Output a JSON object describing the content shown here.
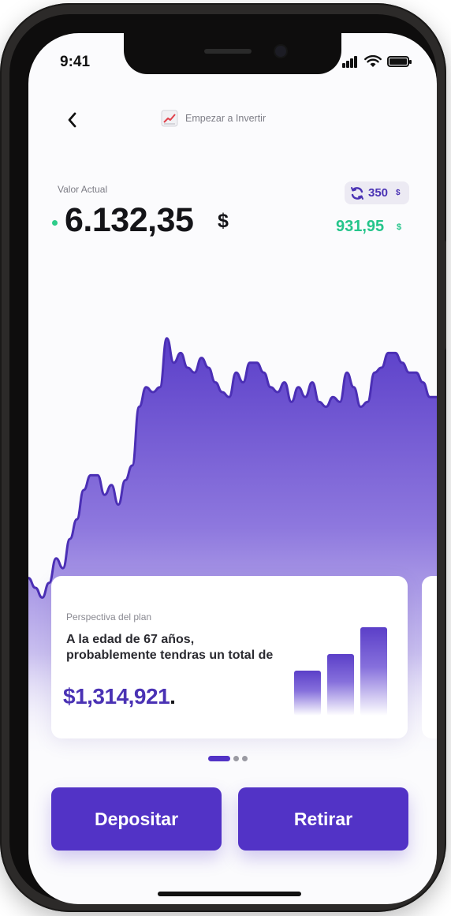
{
  "status_bar": {
    "time": "9:41"
  },
  "header": {
    "title": "Empezar a Invertir"
  },
  "balance": {
    "label": "Valor Actual",
    "amount": "6.132,35",
    "currency": "$",
    "points_value": "350",
    "points_currency": "$",
    "gain": "931,95",
    "gain_currency": "$"
  },
  "chart_data": {
    "type": "area",
    "x": [
      0,
      1,
      2,
      3,
      4,
      5,
      6,
      7,
      8,
      9,
      10,
      11,
      12,
      13,
      14,
      15,
      16,
      17,
      18,
      19,
      20,
      21,
      22,
      23,
      24,
      25,
      26,
      27,
      28,
      29,
      30,
      31,
      32,
      33,
      34,
      35,
      36,
      37,
      38,
      39,
      40,
      41,
      42,
      43,
      44,
      45,
      46,
      47,
      48,
      49,
      50,
      51,
      52,
      53,
      54,
      55,
      56,
      57,
      58,
      59
    ],
    "series": [
      {
        "values": [
          37,
          35,
          33,
          36,
          41,
          39,
          45,
          49,
          55,
          58,
          58,
          54,
          56,
          52,
          57,
          60,
          72,
          76,
          75,
          76,
          86,
          81,
          83,
          80,
          79,
          82,
          80,
          77,
          75,
          74,
          79,
          77,
          81,
          81,
          79,
          76,
          75,
          77,
          73,
          76,
          74,
          77,
          73,
          72,
          74,
          73,
          79,
          76,
          72,
          73,
          79,
          80,
          83,
          83,
          81,
          79,
          79,
          77,
          74,
          74
        ],
        "color": "#5a3fc6"
      }
    ],
    "colors": {
      "line": "#4b2fb5",
      "fill_top": "#5b3fc9",
      "fill_bottom": "#ffffff"
    },
    "grid": false,
    "ylim": [
      0,
      100
    ]
  },
  "carousel": {
    "card": {
      "subtitle": "Perspectiva del plan",
      "text": "A la edad de 67 años, probablemente tendras un total de",
      "amount": "$1,314,921",
      "amount_suffix": "."
    },
    "bars": [
      40,
      54,
      78
    ],
    "active_page": 1,
    "pages": 3
  },
  "actions": {
    "deposit_label": "Depositar",
    "withdraw_label": "Retirar"
  },
  "colors": {
    "accent": "#5233c6",
    "positive": "#25c58b",
    "text": "#141418"
  }
}
